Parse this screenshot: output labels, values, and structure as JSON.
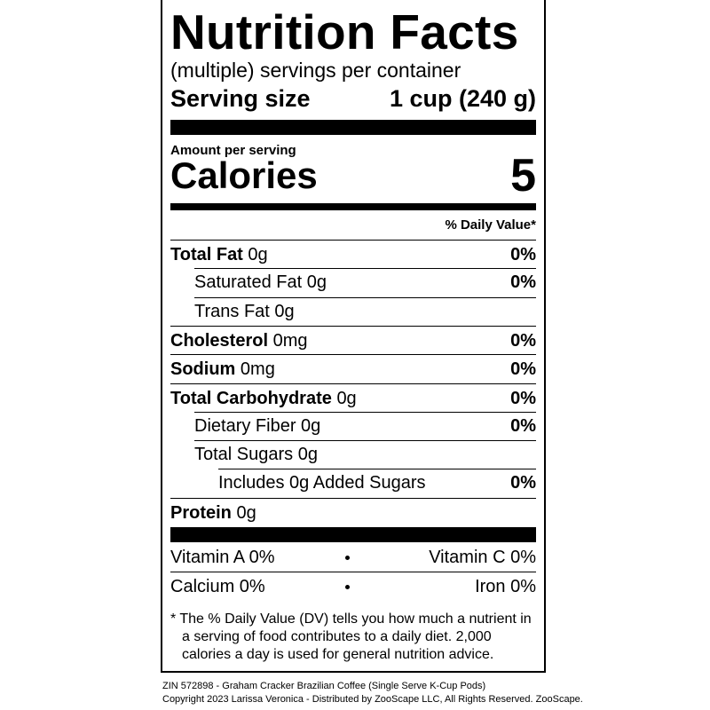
{
  "header": {
    "title": "Nutrition Facts",
    "servings": "(multiple) servings per container",
    "serving_size_label": "Serving size",
    "serving_size_value": "1 cup (240 g)"
  },
  "calories": {
    "amount_label": "Amount per serving",
    "label": "Calories",
    "value": 5
  },
  "daily_value_header": "% Daily Value*",
  "nutrients": [
    {
      "name": "Total Fat",
      "amount": "0g",
      "dv": "0%",
      "bold": true,
      "indent": 0
    },
    {
      "name": "Saturated Fat",
      "amount": "0g",
      "dv": "0%",
      "bold": false,
      "indent": 1
    },
    {
      "name": "Trans Fat",
      "amount": "0g",
      "bold": false,
      "indent": 1
    },
    {
      "name": "Cholesterol",
      "amount": "0mg",
      "dv": "0%",
      "bold": true,
      "indent": 0
    },
    {
      "name": "Sodium",
      "amount": "0mg",
      "dv": "0%",
      "bold": true,
      "indent": 0
    },
    {
      "name": "Total Carbohydrate",
      "amount": "0g",
      "dv": "0%",
      "bold": true,
      "indent": 0
    },
    {
      "name": "Dietary Fiber",
      "amount": "0g",
      "dv": "0%",
      "bold": false,
      "indent": 1
    },
    {
      "name": "Total Sugars",
      "amount": "0g",
      "bold": false,
      "indent": 1
    },
    {
      "name": "Includes 0g Added Sugars",
      "dv": "0%",
      "bold": false,
      "indent": 2
    },
    {
      "name": "Protein",
      "amount": "0g",
      "bold": true,
      "indent": 0
    }
  ],
  "vitamins": [
    [
      "Vitamin A 0%",
      "Vitamin C 0%"
    ],
    [
      "Calcium 0%",
      "Iron 0%"
    ]
  ],
  "footnote": "* The % Daily Value (DV) tells you how much a nutrient in a serving of food contributes to a daily diet. 2,000 calories a day is used for general nutrition advice.",
  "footer": [
    "ZIN 572898 - Graham Cracker Brazilian Coffee (Single Serve K-Cup Pods)",
    "Copyright 2023 Larissa Veronica - Distributed by ZooScape LLC, All Rights Reserved. ZooScape."
  ]
}
